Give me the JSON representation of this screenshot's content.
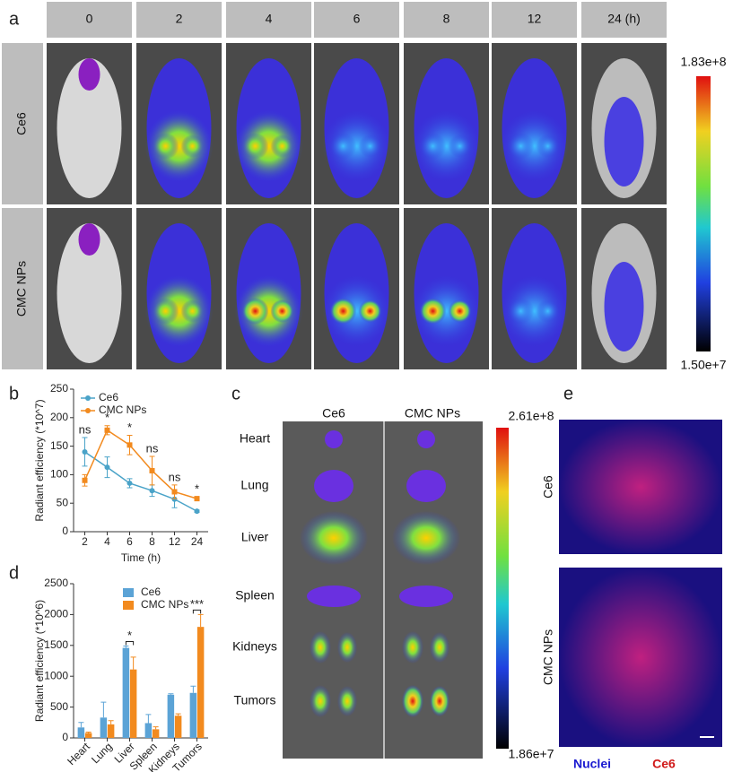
{
  "panels": {
    "a": {
      "label": "a",
      "times": [
        "0",
        "2",
        "4",
        "6",
        "8",
        "12",
        "24 (h)"
      ],
      "rows": [
        "Ce6",
        "CMC NPs"
      ],
      "scale_max": "1.83e+8",
      "scale_min": "1.50e+7"
    },
    "b": {
      "label": "b"
    },
    "c": {
      "label": "c",
      "columns": [
        "Ce6",
        "CMC NPs"
      ],
      "organs": [
        "Heart",
        "Lung",
        "Liver",
        "Spleen",
        "Kidneys",
        "Tumors"
      ],
      "scale_max": "2.61e+8",
      "scale_min": "1.86e+7"
    },
    "d": {
      "label": "d"
    },
    "e": {
      "label": "e",
      "rows": [
        "Ce6",
        "CMC NPs"
      ],
      "legend": [
        "Nuclei",
        "Ce6"
      ]
    }
  },
  "chart_data": [
    {
      "type": "line",
      "x_label": "Time (h)",
      "y_label": "Radiant efficiency (*10^7)",
      "categories": [
        "2",
        "4",
        "6",
        "8",
        "12",
        "24"
      ],
      "ylim": [
        0,
        250
      ],
      "yticks": [
        0,
        50,
        100,
        150,
        200,
        250
      ],
      "legend": "upper left",
      "series": [
        {
          "name": "Ce6",
          "color": "#4aa3c8",
          "values": [
            140,
            113,
            85,
            72,
            57,
            36
          ],
          "errors": [
            25,
            18,
            8,
            10,
            15,
            2
          ]
        },
        {
          "name": "CMC NPs",
          "color": "#f28a1e",
          "values": [
            90,
            178,
            152,
            107,
            70,
            58
          ],
          "errors": [
            10,
            8,
            17,
            25,
            12,
            3
          ]
        }
      ],
      "annotations": [
        "ns",
        "*",
        "*",
        "ns",
        "ns",
        "*"
      ]
    },
    {
      "type": "bar",
      "y_label": "Radiant efficiency (*10^6)",
      "categories": [
        "Heart",
        "Lung",
        "Liver",
        "Spleen",
        "Kidneys",
        "Tumors"
      ],
      "ylim": [
        0,
        2500
      ],
      "yticks": [
        0,
        500,
        1000,
        1500,
        2000,
        2500
      ],
      "legend": "upper center",
      "series": [
        {
          "name": "Ce6",
          "color": "#5ba3d6",
          "values": [
            170,
            330,
            1460,
            240,
            700,
            730
          ],
          "errors": [
            80,
            250,
            30,
            140,
            15,
            110
          ]
        },
        {
          "name": "CMC NPs",
          "color": "#f28a1e",
          "values": [
            80,
            220,
            1110,
            140,
            360,
            1800
          ],
          "errors": [
            15,
            60,
            200,
            40,
            30,
            200
          ]
        }
      ],
      "annotations": [
        {
          "text": "*",
          "category": "Liver"
        },
        {
          "text": "***",
          "category": "Tumors"
        }
      ]
    }
  ]
}
